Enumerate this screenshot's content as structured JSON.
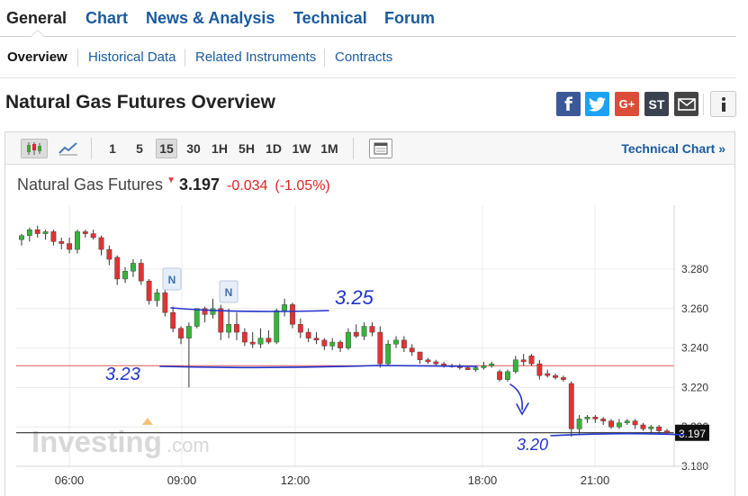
{
  "nav": {
    "tabs": [
      {
        "label": "General",
        "active": true
      },
      {
        "label": "Chart"
      },
      {
        "label": "News & Analysis"
      },
      {
        "label": "Technical"
      },
      {
        "label": "Forum"
      }
    ],
    "subtabs": [
      {
        "label": "Overview",
        "active": true
      },
      {
        "label": "Historical Data"
      },
      {
        "label": "Related Instruments"
      },
      {
        "label": "Contracts"
      }
    ]
  },
  "page": {
    "title": "Natural Gas Futures Overview",
    "share_icons": [
      "facebook-icon",
      "twitter-icon",
      "google-plus-icon",
      "stocktwits-icon",
      "email-icon"
    ],
    "share_labels": {
      "facebook": "f",
      "googleplus": "G+",
      "stocktwits": "ST"
    },
    "info_icon": "info-icon",
    "colors": {
      "facebook": "#3b5998",
      "twitter": "#1da1f2",
      "googleplus": "#dd4b39",
      "stocktwits": "#3a4250",
      "email": "#444444"
    }
  },
  "toolbar": {
    "timeframes": [
      "1",
      "5",
      "15",
      "30",
      "1H",
      "5H",
      "1D",
      "1W",
      "1M"
    ],
    "active_timeframe": "15",
    "icons": [
      "candlestick-icon",
      "line-chart-icon",
      "layout-icon"
    ],
    "technical_chart_label": "Technical Chart »"
  },
  "quote": {
    "name": "Natural Gas Futures",
    "price": "3.197",
    "change": "-0.034",
    "change_pct": "(-1.05%)",
    "colors": {
      "down": "#e22222"
    }
  },
  "chart_data": {
    "type": "candlestick",
    "x_ticks": [
      "06:00",
      "09:00",
      "12:00",
      "18:00",
      "21:00"
    ],
    "y_ticks": [
      "3.280",
      "3.260",
      "3.240",
      "3.220",
      "3.200",
      "3.180"
    ],
    "ylim": [
      3.17,
      3.3
    ],
    "current_price_label": "3.197",
    "previous_close": 3.231,
    "news_markers": [
      "N",
      "N"
    ],
    "annotations": [
      "3.25",
      "3.23",
      "3.20"
    ],
    "watermark": "Investing.com",
    "colors": {
      "up": "#36b43a",
      "down": "#e03333",
      "prev_close": "#e05555",
      "annotation": "#2233cc"
    },
    "candles": [
      [
        3.295,
        3.298,
        3.292,
        3.297
      ],
      [
        3.297,
        3.301,
        3.294,
        3.3
      ],
      [
        3.3,
        3.302,
        3.296,
        3.298
      ],
      [
        3.298,
        3.3,
        3.295,
        3.299
      ],
      [
        3.299,
        3.3,
        3.292,
        3.294
      ],
      [
        3.294,
        3.296,
        3.29,
        3.293
      ],
      [
        3.293,
        3.296,
        3.288,
        3.29
      ],
      [
        3.29,
        3.3,
        3.288,
        3.299
      ],
      [
        3.299,
        3.3,
        3.296,
        3.298
      ],
      [
        3.298,
        3.3,
        3.295,
        3.296
      ],
      [
        3.296,
        3.297,
        3.287,
        3.29
      ],
      [
        3.29,
        3.292,
        3.282,
        3.285
      ],
      [
        3.286,
        3.287,
        3.272,
        3.275
      ],
      [
        3.275,
        3.281,
        3.273,
        3.279
      ],
      [
        3.279,
        3.285,
        3.276,
        3.283
      ],
      [
        3.283,
        3.285,
        3.272,
        3.274
      ],
      [
        3.274,
        3.275,
        3.262,
        3.264
      ],
      [
        3.264,
        3.27,
        3.261,
        3.268
      ],
      [
        3.268,
        3.27,
        3.256,
        3.258
      ],
      [
        3.258,
        3.261,
        3.248,
        3.25
      ],
      [
        3.25,
        3.251,
        3.242,
        3.245
      ],
      [
        3.245,
        3.253,
        3.22,
        3.251
      ],
      [
        3.251,
        3.26,
        3.25,
        3.26
      ],
      [
        3.26,
        3.261,
        3.253,
        3.257
      ],
      [
        3.257,
        3.265,
        3.255,
        3.26
      ],
      [
        3.26,
        3.262,
        3.244,
        3.248
      ],
      [
        3.248,
        3.26,
        3.245,
        3.252
      ],
      [
        3.252,
        3.258,
        3.244,
        3.248
      ],
      [
        3.248,
        3.25,
        3.241,
        3.243
      ],
      [
        3.243,
        3.248,
        3.24,
        3.242
      ],
      [
        3.242,
        3.25,
        3.24,
        3.245
      ],
      [
        3.245,
        3.249,
        3.242,
        3.243
      ],
      [
        3.243,
        3.26,
        3.242,
        3.259
      ],
      [
        3.259,
        3.265,
        3.256,
        3.262
      ],
      [
        3.262,
        3.263,
        3.25,
        3.252
      ],
      [
        3.252,
        3.255,
        3.245,
        3.248
      ],
      [
        3.248,
        3.25,
        3.243,
        3.245
      ],
      [
        3.245,
        3.248,
        3.242,
        3.244
      ],
      [
        3.244,
        3.245,
        3.239,
        3.241
      ],
      [
        3.241,
        3.245,
        3.239,
        3.243
      ],
      [
        3.243,
        3.244,
        3.238,
        3.24
      ],
      [
        3.24,
        3.25,
        3.239,
        3.248
      ],
      [
        3.248,
        3.252,
        3.245,
        3.246
      ],
      [
        3.246,
        3.253,
        3.244,
        3.251
      ],
      [
        3.251,
        3.253,
        3.246,
        3.248
      ],
      [
        3.248,
        3.251,
        3.23,
        3.232
      ],
      [
        3.232,
        3.244,
        3.231,
        3.242
      ],
      [
        3.242,
        3.246,
        3.24,
        3.244
      ],
      [
        3.244,
        3.246,
        3.238,
        3.24
      ],
      [
        3.24,
        3.242,
        3.236,
        3.238
      ],
      [
        3.238,
        3.238,
        3.232,
        3.234
      ],
      [
        3.234,
        3.235,
        3.232,
        3.233
      ],
      [
        3.233,
        3.234,
        3.231,
        3.232
      ],
      [
        3.232,
        3.233,
        3.23,
        3.231
      ],
      [
        3.231,
        3.232,
        3.23,
        3.231
      ],
      [
        3.231,
        3.232,
        3.229,
        3.23
      ],
      [
        3.23,
        3.231,
        3.229,
        3.229
      ],
      [
        3.229,
        3.231,
        3.228,
        3.23
      ],
      [
        3.23,
        3.233,
        3.229,
        3.231
      ],
      [
        3.231,
        3.233,
        3.23,
        3.232
      ],
      [
        3.228,
        3.229,
        3.223,
        3.224
      ],
      [
        3.224,
        3.229,
        3.223,
        3.228
      ],
      [
        3.228,
        3.236,
        3.227,
        3.234
      ],
      [
        3.234,
        3.237,
        3.231,
        3.233
      ],
      [
        3.236,
        3.237,
        3.231,
        3.232
      ],
      [
        3.232,
        3.234,
        3.224,
        3.226
      ],
      [
        3.227,
        3.229,
        3.225,
        3.226
      ],
      [
        3.226,
        3.227,
        3.224,
        3.225
      ],
      [
        3.225,
        3.226,
        3.223,
        3.224
      ],
      [
        3.222,
        3.223,
        3.195,
        3.199
      ],
      [
        3.199,
        3.206,
        3.196,
        3.204
      ],
      [
        3.204,
        3.206,
        3.202,
        3.205
      ],
      [
        3.205,
        3.206,
        3.202,
        3.204
      ],
      [
        3.204,
        3.205,
        3.201,
        3.203
      ],
      [
        3.203,
        3.204,
        3.199,
        3.2
      ],
      [
        3.2,
        3.204,
        3.199,
        3.202
      ],
      [
        3.202,
        3.204,
        3.201,
        3.203
      ],
      [
        3.203,
        3.204,
        3.199,
        3.201
      ],
      [
        3.201,
        3.202,
        3.198,
        3.199
      ],
      [
        3.199,
        3.201,
        3.197,
        3.2
      ],
      [
        3.2,
        3.201,
        3.196,
        3.198
      ],
      [
        3.198,
        3.199,
        3.196,
        3.197
      ]
    ]
  }
}
